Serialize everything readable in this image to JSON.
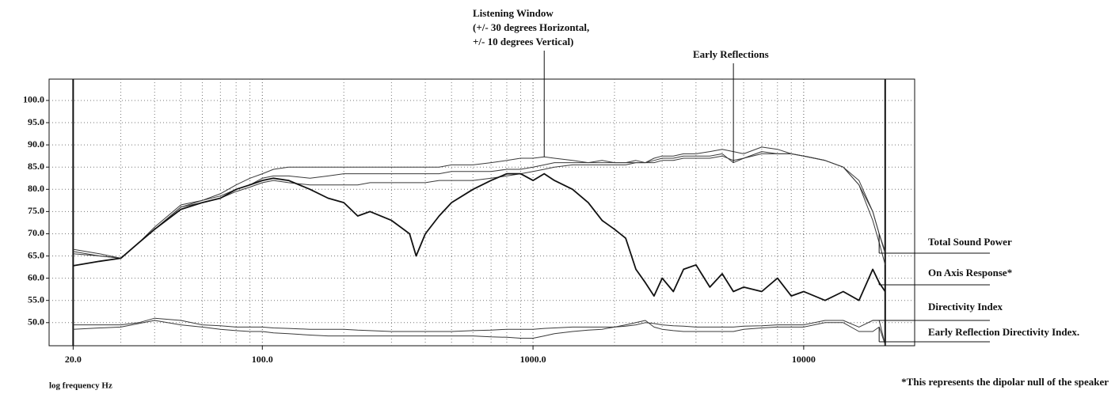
{
  "chart_data": {
    "type": "line",
    "x_label": "log frequency Hz",
    "note": "*This represents the dipolar null of the speaker",
    "log_x": true,
    "grid": true,
    "xlim": [
      16.3,
      25700
    ],
    "ylim": [
      44.8,
      104.8
    ],
    "xticks": [
      {
        "value": 20,
        "label": "20.0"
      },
      {
        "value": 100,
        "label": "100.0"
      },
      {
        "value": 1000,
        "label": "1000.0"
      },
      10000
    ],
    "xgrid": [
      30,
      40,
      50,
      60,
      70,
      80,
      90,
      200,
      300,
      400,
      500,
      600,
      700,
      800,
      900,
      2000,
      3000,
      4000,
      5000,
      6000,
      7000,
      8000,
      9000,
      20000
    ],
    "yticks": [
      {
        "value": 50,
        "label": "50.0"
      },
      {
        "value": 55,
        "label": "55.0"
      },
      {
        "value": 60,
        "label": "60.0"
      },
      {
        "value": 65,
        "label": "65.0"
      },
      {
        "value": 70,
        "label": "70.0"
      },
      {
        "value": 75,
        "label": "75.0"
      },
      {
        "value": 80,
        "label": "80.0"
      },
      {
        "value": 85,
        "label": "85.0"
      },
      {
        "value": 90,
        "label": "90.0"
      },
      {
        "value": 95,
        "label": "95.0"
      },
      {
        "value": 100,
        "label": "100.0"
      }
    ],
    "x": [
      20,
      25,
      30,
      35,
      40,
      50,
      60,
      70,
      80,
      90,
      100,
      110,
      125,
      150,
      175,
      200,
      225,
      250,
      300,
      350,
      370,
      400,
      450,
      500,
      600,
      700,
      800,
      900,
      1000,
      1100,
      1200,
      1400,
      1600,
      1800,
      2000,
      2200,
      2400,
      2600,
      2800,
      3000,
      3300,
      3600,
      4000,
      4500,
      5000,
      5500,
      6000,
      7000,
      8000,
      9000,
      10000,
      12000,
      14000,
      16000,
      18000,
      19000,
      20000
    ],
    "series": [
      {
        "name": "Listening Window",
        "note": [
          "(+/- 30 degrees Horizontal,",
          "+/- 10 degrees Vertical)"
        ],
        "color": "#3a3a3a",
        "values": [
          66.5,
          65.5,
          64.5,
          68,
          71,
          76,
          77.5,
          79,
          81,
          82.5,
          83.5,
          84.5,
          85,
          85,
          85,
          85,
          85,
          85,
          85,
          85,
          85,
          85,
          85,
          85.5,
          85.5,
          86,
          86.5,
          87,
          87,
          87.3,
          87,
          86.5,
          86,
          86.5,
          86,
          86,
          86.5,
          86,
          87,
          87.5,
          87.5,
          88,
          88,
          88.5,
          89,
          88.5,
          88,
          89.5,
          89,
          88,
          87.5,
          86.5,
          85,
          82,
          75,
          70,
          66
        ]
      },
      {
        "name": "Early Reflections",
        "color": "#3a3a3a",
        "values": [
          66,
          65,
          64.5,
          68,
          71.5,
          76.5,
          77.5,
          78.5,
          80,
          81,
          82.5,
          83,
          83,
          82.5,
          83,
          83.5,
          83.5,
          83.5,
          83.5,
          83.5,
          83.5,
          83.5,
          83.5,
          84,
          84,
          84,
          84.5,
          84.5,
          85,
          85.5,
          86,
          86,
          86,
          86,
          86,
          86,
          86,
          86,
          86.5,
          87,
          87,
          87.5,
          87.5,
          87.5,
          88,
          86,
          87,
          88.5,
          88,
          88,
          87.5,
          86.5,
          85,
          81,
          73,
          68,
          63
        ]
      },
      {
        "name": "Total Sound Power",
        "color": "#3a3a3a",
        "values": [
          65.5,
          65,
          64.5,
          68,
          71,
          76,
          77,
          78,
          79.5,
          80.5,
          81.5,
          82,
          81.5,
          81,
          81,
          81,
          81,
          81.5,
          81.5,
          81.5,
          81.5,
          81.5,
          82,
          82,
          82,
          82.5,
          83,
          83.5,
          84,
          84.5,
          85,
          85.5,
          85.5,
          85.5,
          85.5,
          85.5,
          86,
          86,
          86,
          86.5,
          86.5,
          87,
          87,
          87,
          87.5,
          86.5,
          87,
          88,
          88,
          88,
          87.5,
          86.5,
          85,
          81,
          75,
          70,
          65.5
        ]
      },
      {
        "name": "On Axis Response*",
        "color": "#111111",
        "values": [
          62.8,
          63.8,
          64.5,
          68,
          71,
          75.5,
          77,
          78,
          80,
          81,
          82,
          82.5,
          82,
          80,
          78,
          77,
          74,
          75,
          73,
          70,
          65,
          70,
          74,
          77,
          80,
          82,
          83.5,
          83.5,
          82,
          83.5,
          82,
          80,
          77,
          73,
          71,
          69,
          62,
          59,
          56,
          60,
          57,
          62,
          63,
          58,
          61,
          57,
          58,
          57,
          60,
          56,
          57,
          55,
          57,
          55,
          62,
          59,
          57
        ]
      },
      {
        "name": "Directivity Index",
        "color": "#3a3a3a",
        "values": [
          49.5,
          49.5,
          49.5,
          50,
          51,
          50.5,
          49.5,
          49.3,
          49,
          49,
          49,
          48.8,
          48.7,
          48.5,
          48.5,
          48.5,
          48.3,
          48.2,
          48,
          48,
          48,
          48,
          48,
          48,
          48.2,
          48.3,
          48.5,
          48.5,
          48.5,
          48.7,
          48.8,
          49,
          49,
          49,
          49,
          49.2,
          49.5,
          50,
          49.8,
          49.5,
          49.3,
          49.2,
          49,
          49,
          49,
          49,
          49.2,
          49.3,
          49.5,
          49.5,
          49.5,
          50.5,
          50.5,
          49,
          50.5,
          50.5,
          45
        ]
      },
      {
        "name": "Early Reflection Directivity Index.",
        "color": "#3a3a3a",
        "values": [
          48.5,
          48.8,
          49,
          49.8,
          50.5,
          49.5,
          49,
          48.5,
          48.2,
          48,
          48,
          47.7,
          47.5,
          47.2,
          47,
          47,
          47,
          47,
          47,
          47,
          47,
          47,
          47,
          47,
          47,
          46.8,
          46.7,
          46.5,
          46.5,
          47,
          47.5,
          48,
          48.3,
          48.5,
          49,
          49.5,
          50,
          50.5,
          49,
          48.5,
          48.2,
          48,
          48,
          48,
          48,
          48,
          48.5,
          48.8,
          49,
          49,
          49,
          50,
          50,
          48,
          48,
          49,
          45
        ]
      }
    ]
  }
}
